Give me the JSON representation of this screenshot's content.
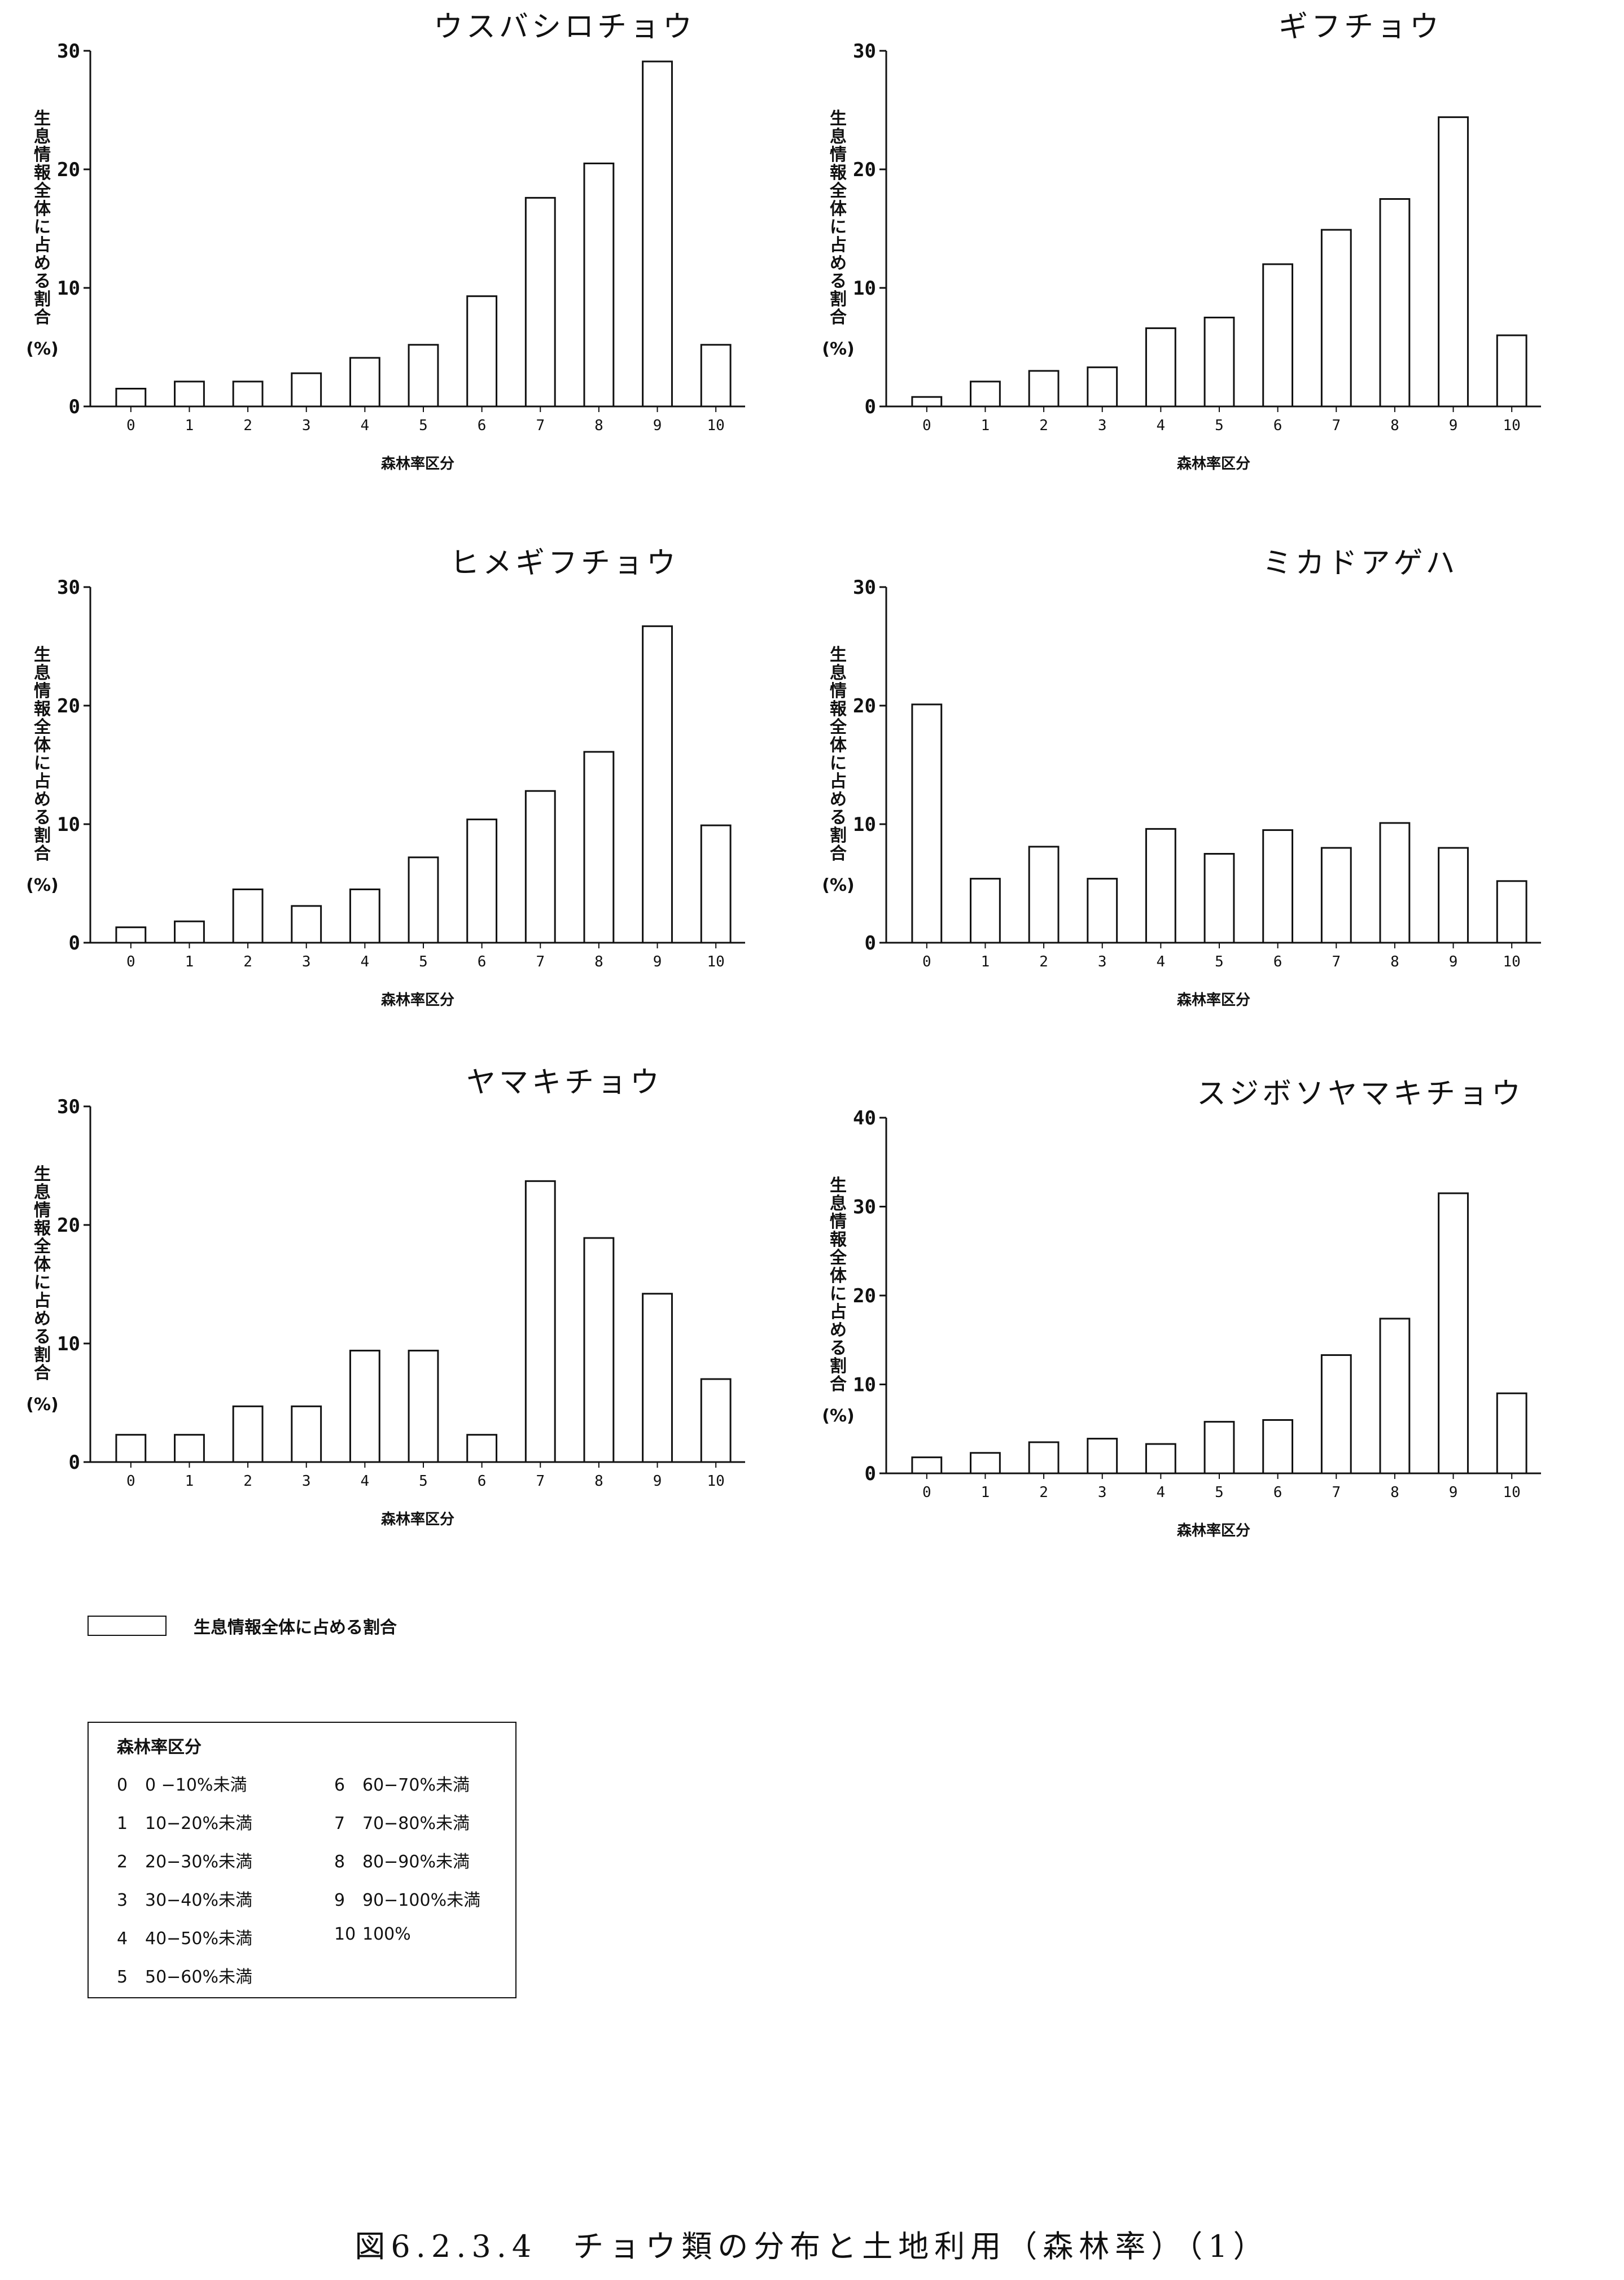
{
  "chart_data": [
    {
      "type": "bar",
      "title": "ウスバシロチョウ",
      "ylabel": "生息情報全体に占める割合(%)",
      "xlabel": "森林率区分",
      "categories": [
        "0",
        "1",
        "2",
        "3",
        "4",
        "5",
        "6",
        "7",
        "8",
        "9",
        "10"
      ],
      "values": [
        1.5,
        2.1,
        2.1,
        2.8,
        4.1,
        5.2,
        9.3,
        17.6,
        20.5,
        29.1,
        5.2
      ],
      "ylim": [
        0,
        30
      ],
      "yticks": [
        "0",
        "10",
        "20",
        "30"
      ]
    },
    {
      "type": "bar",
      "title": "ギフチョウ",
      "ylabel": "生息情報全体に占める割合(%)",
      "xlabel": "森林率区分",
      "categories": [
        "0",
        "1",
        "2",
        "3",
        "4",
        "5",
        "6",
        "7",
        "8",
        "9",
        "10"
      ],
      "values": [
        0.8,
        2.1,
        3.0,
        3.3,
        6.6,
        7.5,
        12.0,
        14.9,
        17.5,
        24.4,
        6.0
      ],
      "ylim": [
        0,
        30
      ],
      "yticks": [
        "0",
        "10",
        "20",
        "30"
      ]
    },
    {
      "type": "bar",
      "title": "ヒメギフチョウ",
      "ylabel": "生息情報全体に占める割合(%)",
      "xlabel": "森林率区分",
      "categories": [
        "0",
        "1",
        "2",
        "3",
        "4",
        "5",
        "6",
        "7",
        "8",
        "9",
        "10"
      ],
      "values": [
        1.3,
        1.8,
        4.5,
        3.1,
        4.5,
        7.2,
        10.4,
        12.8,
        16.1,
        26.7,
        9.9
      ],
      "ylim": [
        0,
        30
      ],
      "yticks": [
        "0",
        "10",
        "20",
        "30"
      ]
    },
    {
      "type": "bar",
      "title": "ミカドアゲハ",
      "ylabel": "生息情報全体に占める割合(%)",
      "xlabel": "森林率区分",
      "categories": [
        "0",
        "1",
        "2",
        "3",
        "4",
        "5",
        "6",
        "7",
        "8",
        "9",
        "10"
      ],
      "values": [
        20.1,
        5.4,
        8.1,
        5.4,
        9.6,
        7.5,
        9.5,
        8.0,
        10.1,
        8.0,
        5.2
      ],
      "ylim": [
        0,
        30
      ],
      "yticks": [
        "0",
        "10",
        "20",
        "30"
      ]
    },
    {
      "type": "bar",
      "title": "ヤマキチョウ",
      "ylabel": "生息情報全体に占める割合(%)",
      "xlabel": "森林率区分",
      "categories": [
        "0",
        "1",
        "2",
        "3",
        "4",
        "5",
        "6",
        "7",
        "8",
        "9",
        "10"
      ],
      "values": [
        2.3,
        2.3,
        4.7,
        4.7,
        9.4,
        9.4,
        2.3,
        23.7,
        18.9,
        14.2,
        7.0
      ],
      "ylim": [
        0,
        30
      ],
      "yticks": [
        "0",
        "10",
        "20",
        "30"
      ]
    },
    {
      "type": "bar",
      "title": "スジボソヤマキチョウ",
      "ylabel": "生息情報全体に占める割合(%)",
      "xlabel": "森林率区分",
      "categories": [
        "0",
        "1",
        "2",
        "3",
        "4",
        "5",
        "6",
        "7",
        "8",
        "9",
        "10"
      ],
      "values": [
        1.8,
        2.3,
        3.5,
        3.9,
        3.3,
        5.8,
        6.0,
        13.3,
        17.4,
        31.5,
        9.0
      ],
      "ylim": [
        0,
        40
      ],
      "yticks": [
        "0",
        "10",
        "20",
        "30",
        "40"
      ]
    }
  ],
  "legend": {
    "label": "生息情報全体に占める割合"
  },
  "category_box": {
    "title": "森林率区分",
    "items": [
      {
        "num": "0",
        "range": "0 −10%未満"
      },
      {
        "num": "1",
        "range": "10−20%未満"
      },
      {
        "num": "2",
        "range": "20−30%未満"
      },
      {
        "num": "3",
        "range": "30−40%未満"
      },
      {
        "num": "4",
        "range": "40−50%未満"
      },
      {
        "num": "5",
        "range": "50−60%未満"
      },
      {
        "num": "6",
        "range": "60−70%未満"
      },
      {
        "num": "7",
        "range": "70−80%未満"
      },
      {
        "num": "8",
        "range": "80−90%未満"
      },
      {
        "num": "9",
        "range": "90−100%未満"
      },
      {
        "num": "10",
        "range": "100%"
      }
    ]
  },
  "caption": "図6.2.3.4　チョウ類の分布と土地利用（森林率）（1）"
}
